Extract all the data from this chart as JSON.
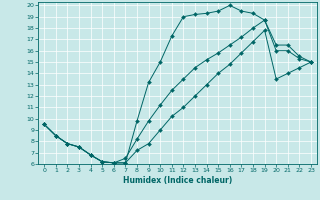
{
  "title": "",
  "xlabel": "Humidex (Indice chaleur)",
  "bg_color": "#c8e8e8",
  "grid_color": "#b0d8d8",
  "line_color": "#006666",
  "xlim": [
    -0.5,
    23.5
  ],
  "ylim": [
    6,
    20.3
  ],
  "xticks": [
    0,
    1,
    2,
    3,
    4,
    5,
    6,
    7,
    8,
    9,
    10,
    11,
    12,
    13,
    14,
    15,
    16,
    17,
    18,
    19,
    20,
    21,
    22,
    23
  ],
  "yticks": [
    6,
    7,
    8,
    9,
    10,
    11,
    12,
    13,
    14,
    15,
    16,
    17,
    18,
    19,
    20
  ],
  "curve1_x": [
    0,
    1,
    2,
    3,
    4,
    5,
    6,
    7,
    8,
    9,
    10,
    11,
    12,
    13,
    14,
    15,
    16,
    17,
    18,
    19,
    20,
    21,
    22,
    23
  ],
  "curve1_y": [
    9.5,
    8.5,
    7.8,
    7.5,
    6.8,
    6.2,
    6.1,
    6.1,
    9.8,
    13.2,
    15.0,
    17.3,
    19.0,
    19.2,
    19.3,
    19.5,
    20.0,
    19.5,
    19.3,
    18.7,
    16.5,
    16.5,
    15.5,
    15.0
  ],
  "curve2_x": [
    0,
    1,
    2,
    3,
    4,
    5,
    6,
    7,
    8,
    9,
    10,
    11,
    12,
    13,
    14,
    15,
    16,
    17,
    18,
    19,
    20,
    21,
    22,
    23
  ],
  "curve2_y": [
    9.5,
    8.5,
    7.8,
    7.5,
    6.8,
    6.2,
    6.1,
    6.5,
    8.2,
    9.8,
    11.2,
    12.5,
    13.5,
    14.5,
    15.2,
    15.8,
    16.5,
    17.2,
    18.0,
    18.7,
    16.0,
    16.0,
    15.3,
    15.0
  ],
  "curve3_x": [
    0,
    1,
    2,
    3,
    4,
    5,
    6,
    7,
    8,
    9,
    10,
    11,
    12,
    13,
    14,
    15,
    16,
    17,
    18,
    19,
    20,
    21,
    22,
    23
  ],
  "curve3_y": [
    9.5,
    8.5,
    7.8,
    7.5,
    6.8,
    6.2,
    6.1,
    6.1,
    7.2,
    7.8,
    9.0,
    10.2,
    11.0,
    12.0,
    13.0,
    14.0,
    14.8,
    15.8,
    16.8,
    17.8,
    13.5,
    14.0,
    14.5,
    15.0
  ]
}
